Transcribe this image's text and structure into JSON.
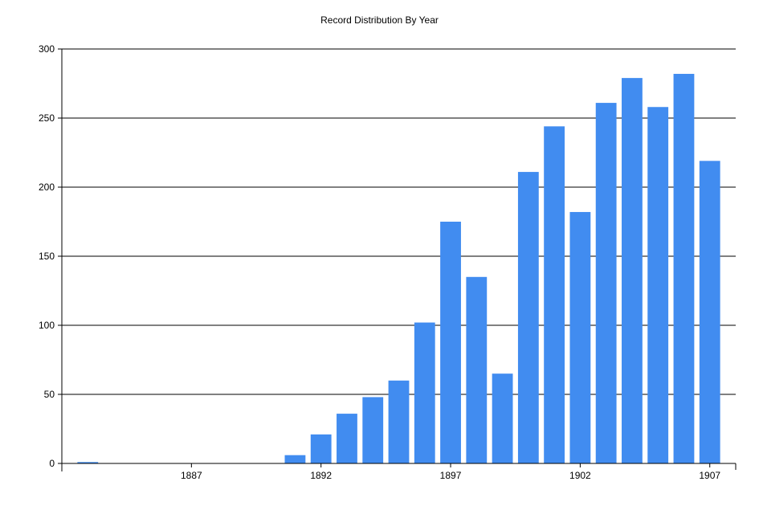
{
  "chart_data": {
    "type": "bar",
    "title": "Record Distribution By Year",
    "xlabel": "",
    "ylabel": "",
    "x": [
      1883,
      1891,
      1892,
      1893,
      1894,
      1895,
      1896,
      1897,
      1898,
      1899,
      1900,
      1901,
      1902,
      1903,
      1904,
      1905,
      1906,
      1907
    ],
    "values": [
      1,
      6,
      21,
      36,
      48,
      60,
      102,
      175,
      135,
      65,
      211,
      244,
      182,
      261,
      279,
      258,
      282,
      219
    ],
    "xlim": [
      1882,
      1908
    ],
    "ylim": [
      0,
      300
    ],
    "x_ticks": [
      1887,
      1892,
      1897,
      1902,
      1907
    ],
    "y_ticks": [
      0,
      50,
      100,
      150,
      200,
      250,
      300
    ],
    "grid": "horizontal",
    "legend": "none",
    "bar_color": "#418cf0",
    "grid_color": "#000000"
  }
}
